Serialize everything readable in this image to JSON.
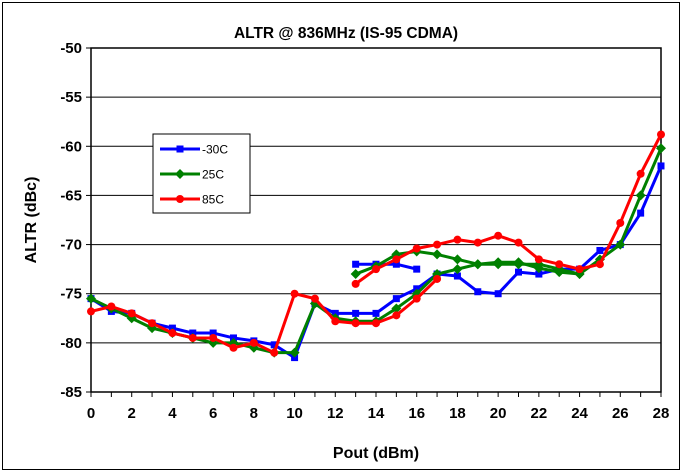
{
  "chart_data": {
    "type": "line",
    "title": "ALTR @ 836MHz (IS-95 CDMA)",
    "xlabel": "Pout (dBm)",
    "ylabel": "ALTR (dBc)",
    "xlim": [
      0,
      28
    ],
    "ylim": [
      -85,
      -50
    ],
    "xticks": [
      0,
      2,
      4,
      6,
      8,
      10,
      12,
      14,
      16,
      18,
      20,
      22,
      24,
      26,
      28
    ],
    "yticks": [
      -50,
      -55,
      -60,
      -65,
      -70,
      -75,
      -80,
      -85
    ],
    "grid": "horizontal",
    "legend_position": "left",
    "series": [
      {
        "name": "-30C",
        "color": "#0000ff",
        "marker": "square",
        "segments": [
          [
            [
              0,
              -75.5
            ],
            [
              1,
              -76.8
            ],
            [
              2,
              -77
            ],
            [
              3,
              -78
            ],
            [
              4,
              -78.5
            ],
            [
              5,
              -79
            ],
            [
              6,
              -79
            ],
            [
              7,
              -79.5
            ],
            [
              8,
              -79.8
            ],
            [
              9,
              -80.2
            ],
            [
              10,
              -81.5
            ],
            [
              11,
              -76
            ],
            [
              12,
              -77
            ],
            [
              13,
              -77
            ],
            [
              14,
              -77
            ],
            [
              15,
              -75.5
            ],
            [
              16,
              -74.5
            ],
            [
              17,
              -73
            ],
            [
              18,
              -73.2
            ],
            [
              19,
              -74.8
            ],
            [
              20,
              -75
            ],
            [
              21,
              -72.8
            ],
            [
              22,
              -73
            ],
            [
              23,
              -72.5
            ],
            [
              24,
              -72.5
            ],
            [
              25,
              -70.6
            ],
            [
              26,
              -70
            ],
            [
              27,
              -66.8
            ],
            [
              28,
              -62
            ]
          ],
          [
            [
              13,
              -72
            ],
            [
              14,
              -72
            ],
            [
              15,
              -72
            ],
            [
              16,
              -72.5
            ]
          ]
        ]
      },
      {
        "name": "25C",
        "color": "#008000",
        "marker": "diamond",
        "segments": [
          [
            [
              0,
              -75.5
            ],
            [
              1,
              -76.5
            ],
            [
              2,
              -77.5
            ],
            [
              3,
              -78.5
            ],
            [
              4,
              -79
            ],
            [
              5,
              -79.5
            ],
            [
              6,
              -80
            ],
            [
              7,
              -80
            ],
            [
              8,
              -80.5
            ],
            [
              9,
              -81
            ],
            [
              10,
              -81
            ],
            [
              11,
              -76
            ],
            [
              12,
              -77.5
            ],
            [
              13,
              -77.8
            ],
            [
              14,
              -77.8
            ],
            [
              15,
              -76.5
            ],
            [
              16,
              -75
            ],
            [
              17,
              -73
            ],
            [
              18,
              -72.5
            ],
            [
              19,
              -72
            ],
            [
              20,
              -72
            ],
            [
              21,
              -72
            ],
            [
              22,
              -72
            ],
            [
              23,
              -72.5
            ],
            [
              24,
              -73
            ],
            [
              25,
              -71.5
            ],
            [
              26,
              -70
            ],
            [
              27,
              -65
            ],
            [
              28,
              -60.2
            ]
          ],
          [
            [
              13,
              -73
            ],
            [
              14,
              -72.2
            ],
            [
              15,
              -71
            ],
            [
              16,
              -70.7
            ],
            [
              17,
              -71
            ],
            [
              18,
              -71.5
            ],
            [
              19,
              -72
            ],
            [
              20,
              -71.8
            ],
            [
              21,
              -71.8
            ],
            [
              22,
              -72.4
            ],
            [
              23,
              -72.8
            ],
            [
              24,
              -73
            ]
          ]
        ]
      },
      {
        "name": "85C",
        "color": "#ff0000",
        "marker": "circle",
        "segments": [
          [
            [
              0,
              -76.8
            ],
            [
              1,
              -76.3
            ],
            [
              2,
              -77
            ],
            [
              3,
              -78
            ],
            [
              4,
              -79
            ],
            [
              5,
              -79.5
            ],
            [
              6,
              -79.5
            ],
            [
              7,
              -80.5
            ],
            [
              8,
              -80
            ],
            [
              9,
              -81
            ],
            [
              10,
              -75
            ],
            [
              11,
              -75.5
            ],
            [
              12,
              -77.8
            ],
            [
              13,
              -78
            ],
            [
              14,
              -78
            ],
            [
              15,
              -77.2
            ],
            [
              16,
              -75.5
            ],
            [
              17,
              -73.5
            ]
          ],
          [
            [
              13,
              -74
            ],
            [
              14,
              -72.5
            ],
            [
              15,
              -71.5
            ],
            [
              16,
              -70.4
            ],
            [
              17,
              -70
            ],
            [
              18,
              -69.5
            ],
            [
              19,
              -69.8
            ],
            [
              20,
              -69.1
            ],
            [
              21,
              -69.8
            ],
            [
              22,
              -71.5
            ],
            [
              23,
              -72
            ],
            [
              24,
              -72.5
            ],
            [
              25,
              -72
            ],
            [
              26,
              -67.8
            ],
            [
              27,
              -62.8
            ],
            [
              28,
              -58.8
            ]
          ]
        ]
      }
    ]
  }
}
